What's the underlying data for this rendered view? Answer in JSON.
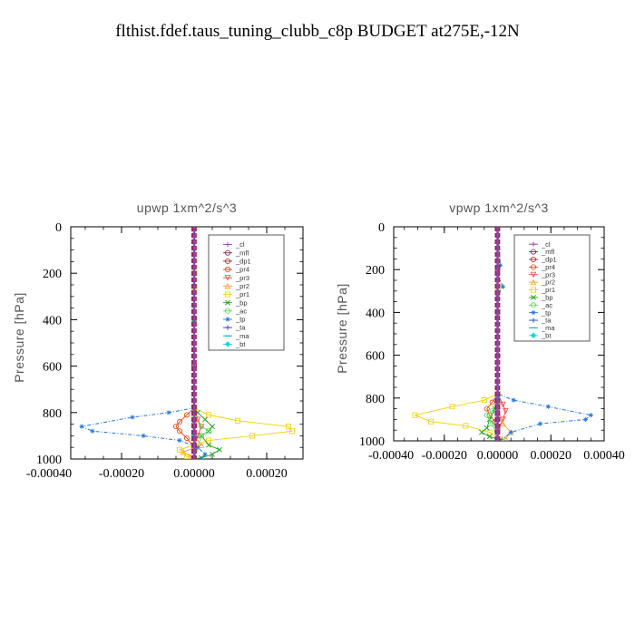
{
  "title": "flthist.fdef.taus_tuning_clubb_c8p  BUDGET at275E,-12N",
  "chart_data": [
    {
      "type": "line",
      "panel_title": "upwp   1xm^2/s^3",
      "ylabel": "Pressure  [hPa]",
      "xlabel": "",
      "xlim": [
        -0.00034,
        0.0003
      ],
      "ylim": [
        1000,
        0
      ],
      "xticks": [
        -0.0004,
        -0.0002,
        0.0,
        0.0002
      ],
      "xtick_labels": [
        "-0.00040",
        "-0.00020",
        "0.00000",
        "0.00020"
      ],
      "yticks": [
        0,
        200,
        400,
        600,
        800,
        1000
      ],
      "ytick_labels": [
        "0",
        "200",
        "400",
        "600",
        "800",
        "1000"
      ],
      "legend_position": "top-right",
      "series": [
        {
          "name": "_cl",
          "color": "#8e44ad",
          "marker": "plus",
          "x": [
            0,
            0,
            0,
            0,
            0,
            0,
            0,
            0,
            0
          ],
          "y": [
            0,
            200,
            400,
            600,
            800,
            850,
            900,
            950,
            1000
          ]
        },
        {
          "name": "_mfl",
          "color": "#8b2252",
          "marker": "circle",
          "x": [
            0,
            0,
            0,
            0,
            0,
            0,
            0,
            0,
            0
          ],
          "y": [
            0,
            200,
            400,
            600,
            800,
            850,
            900,
            950,
            1000
          ]
        },
        {
          "name": "_dp1",
          "color": "#b22222",
          "marker": "circle",
          "x": [
            0,
            0,
            0,
            0,
            0,
            0,
            0,
            0,
            0,
            0
          ],
          "y": [
            0,
            200,
            400,
            600,
            780,
            830,
            860,
            900,
            950,
            1000
          ]
        },
        {
          "name": "_pr4",
          "color": "#e8400c",
          "marker": "circle",
          "x": [
            0,
            0,
            0,
            -2e-05,
            -4e-05,
            -5e-05,
            -4e-05,
            -2e-05,
            0,
            0
          ],
          "y": [
            0,
            400,
            780,
            810,
            840,
            860,
            880,
            910,
            950,
            1000
          ]
        },
        {
          "name": "_pr3",
          "color": "#ff4040",
          "marker": "triangle-down",
          "x": [
            0,
            0,
            0,
            1e-05,
            2e-05,
            1e-05,
            0,
            0
          ],
          "y": [
            0,
            400,
            780,
            830,
            860,
            900,
            950,
            1000
          ]
        },
        {
          "name": "_pr2",
          "color": "#ff9933",
          "marker": "triangle",
          "x": [
            0,
            0,
            0,
            0,
            2e-05,
            -3e-05,
            -1e-05,
            0
          ],
          "y": [
            0,
            400,
            800,
            900,
            940,
            970,
            990,
            1000
          ]
        },
        {
          "name": "_pr1",
          "color": "#f5d000",
          "marker": "square",
          "x": [
            0,
            0,
            0,
            0,
            4e-05,
            0.00012,
            0.00026,
            0.00027,
            0.00016,
            4e-05,
            -4e-05,
            -2e-05,
            0
          ],
          "y": [
            0,
            200,
            260,
            780,
            810,
            835,
            860,
            880,
            900,
            920,
            960,
            990,
            1000
          ]
        },
        {
          "name": "_bp",
          "color": "#1a9e1a",
          "marker": "cross",
          "x": [
            0,
            0,
            0,
            1e-05,
            3e-05,
            5e-05,
            4e-05,
            2e-05,
            4e-05,
            7e-05,
            5e-05,
            2e-05,
            0
          ],
          "y": [
            0,
            400,
            780,
            800,
            830,
            860,
            880,
            900,
            940,
            960,
            980,
            995,
            1000
          ]
        },
        {
          "name": "_ac",
          "color": "#55dd55",
          "marker": "circle",
          "x": [
            0,
            0,
            0,
            2e-05,
            4e-05,
            2e-05,
            0
          ],
          "y": [
            0,
            400,
            820,
            860,
            880,
            900,
            1000
          ]
        },
        {
          "name": "_tp",
          "color": "#2277dd",
          "marker": "asterisk",
          "x": [
            0,
            0,
            0,
            -7e-05,
            -0.00017,
            -0.00031,
            -0.00028,
            -0.00014,
            -4e-05,
            1e-05,
            3e-05,
            2e-05
          ],
          "y": [
            0,
            400,
            780,
            800,
            820,
            860,
            880,
            900,
            920,
            950,
            980,
            1000
          ]
        },
        {
          "name": "_ta",
          "color": "#3344cc",
          "marker": "plus",
          "x": [
            0,
            0,
            0,
            0,
            0,
            0,
            0
          ],
          "y": [
            0,
            400,
            800,
            850,
            900,
            950,
            1000
          ]
        },
        {
          "name": "_ma",
          "color": "#00aaaa",
          "marker": "dash",
          "x": [
            0,
            0,
            0,
            0,
            0
          ],
          "y": [
            0,
            400,
            800,
            900,
            1000
          ]
        },
        {
          "name": "_bt",
          "color": "#00dddd",
          "marker": "diamond",
          "x": [
            0,
            0,
            0,
            0,
            0
          ],
          "y": [
            0,
            400,
            800,
            900,
            1000
          ]
        }
      ]
    },
    {
      "type": "line",
      "panel_title": "vpwp   1xm^2/s^3",
      "ylabel": "Pressure  [hPa]",
      "xlabel": "",
      "xlim": [
        -0.00039,
        0.0004
      ],
      "ylim": [
        1000,
        0
      ],
      "xticks": [
        -0.0004,
        -0.0002,
        0.0,
        0.0002,
        0.0004
      ],
      "xtick_labels": [
        "-0.00040",
        "-0.00020",
        "0.00000",
        "0.00020",
        "0.00040"
      ],
      "yticks": [
        0,
        200,
        400,
        600,
        800,
        1000
      ],
      "ytick_labels": [
        "0",
        "200",
        "400",
        "600",
        "800",
        "1000"
      ],
      "legend_position": "top-right",
      "series": [
        {
          "name": "_cl",
          "color": "#8e44ad",
          "marker": "plus",
          "x": [
            0,
            0,
            0,
            0,
            0,
            0,
            0,
            0
          ],
          "y": [
            0,
            200,
            400,
            600,
            800,
            850,
            900,
            1000
          ]
        },
        {
          "name": "_mfl",
          "color": "#8b2252",
          "marker": "circle",
          "x": [
            0,
            0,
            0,
            0,
            0,
            0,
            0,
            0
          ],
          "y": [
            0,
            200,
            400,
            600,
            800,
            850,
            900,
            1000
          ]
        },
        {
          "name": "_dp1",
          "color": "#b22222",
          "marker": "circle",
          "x": [
            0,
            0,
            0,
            0,
            0,
            0,
            0,
            0,
            0
          ],
          "y": [
            0,
            200,
            400,
            600,
            780,
            830,
            880,
            940,
            1000
          ]
        },
        {
          "name": "_pr4",
          "color": "#e8400c",
          "marker": "circle",
          "x": [
            0,
            0,
            0,
            -2e-05,
            -4e-05,
            -3e-05,
            -1e-05,
            0,
            0
          ],
          "y": [
            0,
            400,
            780,
            820,
            850,
            880,
            910,
            950,
            1000
          ]
        },
        {
          "name": "_pr3",
          "color": "#ff4040",
          "marker": "triangle-down",
          "x": [
            0,
            0,
            0,
            2e-05,
            3e-05,
            2e-05,
            0,
            0
          ],
          "y": [
            0,
            400,
            780,
            830,
            860,
            900,
            950,
            1000
          ]
        },
        {
          "name": "_pr2",
          "color": "#ff9933",
          "marker": "triangle",
          "x": [
            0,
            0,
            0,
            2e-05,
            5e-05,
            3e-05,
            0
          ],
          "y": [
            0,
            400,
            880,
            920,
            960,
            990,
            1000
          ]
        },
        {
          "name": "_pr1",
          "color": "#f5d000",
          "marker": "square",
          "x": [
            0,
            0,
            0,
            0,
            0,
            -5e-05,
            -0.00017,
            -0.00031,
            -0.00025,
            -0.00012,
            -3e-05,
            1e-05,
            0
          ],
          "y": [
            0,
            160,
            270,
            300,
            780,
            810,
            840,
            880,
            910,
            930,
            960,
            990,
            1000
          ]
        },
        {
          "name": "_bp",
          "color": "#1a9e1a",
          "marker": "cross",
          "x": [
            0,
            0,
            0,
            -1e-05,
            -3e-05,
            -4e-05,
            -6e-05,
            -3e-05,
            1e-05,
            0
          ],
          "y": [
            0,
            400,
            800,
            850,
            900,
            940,
            960,
            980,
            995,
            1000
          ]
        },
        {
          "name": "_ac",
          "color": "#55dd55",
          "marker": "circle",
          "x": [
            0,
            0,
            0,
            -2e-05,
            -4e-05,
            -2e-05,
            0
          ],
          "y": [
            0,
            400,
            820,
            860,
            880,
            920,
            1000
          ]
        },
        {
          "name": "_tp",
          "color": "#2277dd",
          "marker": "asterisk",
          "x": [
            0,
            1e-05,
            0,
            2e-05,
            0,
            0,
            6e-05,
            0.00019,
            0.00035,
            0.00033,
            0.00016,
            5e-05,
            1e-05
          ],
          "y": [
            0,
            180,
            220,
            280,
            320,
            780,
            810,
            840,
            880,
            900,
            920,
            960,
            1000
          ]
        },
        {
          "name": "_ta",
          "color": "#3344cc",
          "marker": "plus",
          "x": [
            0,
            0,
            0,
            0,
            0,
            0
          ],
          "y": [
            0,
            400,
            800,
            900,
            950,
            1000
          ]
        },
        {
          "name": "_ma",
          "color": "#00aaaa",
          "marker": "dash",
          "x": [
            0,
            0,
            0,
            0,
            0
          ],
          "y": [
            0,
            400,
            800,
            900,
            1000
          ]
        },
        {
          "name": "_bt",
          "color": "#00dddd",
          "marker": "diamond",
          "x": [
            0,
            0,
            0,
            0,
            0
          ],
          "y": [
            0,
            400,
            800,
            900,
            1000
          ]
        }
      ]
    }
  ]
}
